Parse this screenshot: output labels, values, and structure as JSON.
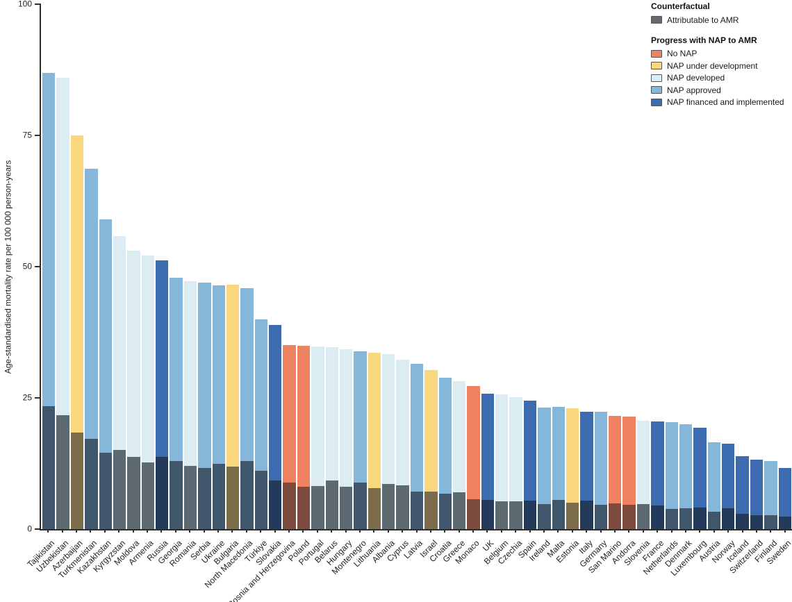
{
  "legend": {
    "counterfactual_title": "Counterfactual",
    "counterfactual_items": [
      {
        "key": "attributable",
        "label": "Attributable to AMR"
      }
    ],
    "nap_title": "Progress with NAP to AMR",
    "nap_items": [
      {
        "key": "no_nap",
        "label": "No NAP"
      },
      {
        "key": "under_development",
        "label": "NAP under development"
      },
      {
        "key": "developed",
        "label": "NAP developed"
      },
      {
        "key": "approved",
        "label": "NAP approved"
      },
      {
        "key": "financed",
        "label": "NAP financed and implemented"
      }
    ]
  },
  "chart_data": {
    "type": "bar",
    "title": "",
    "xlabel": "",
    "ylabel": "Age-standardised mortality rate per 100 000 person-years",
    "ylim": [
      0,
      100
    ],
    "yticks": [
      0,
      25,
      50,
      75,
      100
    ],
    "grid": false,
    "legend_position": "top-right",
    "semantics": "Each bar shows total (counterfactual) age-standardised mortality rate coloured by NAP progress status; the dark bottom segment is the portion attributable to AMR.",
    "colors": {
      "no_nap": "#EF8261",
      "under_development": "#F9D77E",
      "developed": "#DBECF2",
      "approved": "#85B7DA",
      "financed": "#3D6BB0",
      "attributable_legend": "#63696F",
      "attributable_overlay": {
        "no_nap": "#7C4B3E",
        "under_development": "#7D6C4A",
        "developed": "#5E6A72",
        "approved": "#40566A",
        "financed": "#233A5B"
      }
    },
    "bars": [
      {
        "country": "Tajikistan",
        "nap_status": "approved",
        "counterfactual": 86.9,
        "attributable": 23.4
      },
      {
        "country": "Uzbekistan",
        "nap_status": "developed",
        "counterfactual": 86.0,
        "attributable": 21.7
      },
      {
        "country": "Azerbaijan",
        "nap_status": "under_development",
        "counterfactual": 75.0,
        "attributable": 18.4
      },
      {
        "country": "Turkmenistan",
        "nap_status": "approved",
        "counterfactual": 68.6,
        "attributable": 17.2
      },
      {
        "country": "Kazakhstan",
        "nap_status": "approved",
        "counterfactual": 59.0,
        "attributable": 14.6
      },
      {
        "country": "Kyrgyzstan",
        "nap_status": "developed",
        "counterfactual": 55.8,
        "attributable": 15.1
      },
      {
        "country": "Moldova",
        "nap_status": "developed",
        "counterfactual": 53.0,
        "attributable": 13.8
      },
      {
        "country": "Armenia",
        "nap_status": "developed",
        "counterfactual": 52.1,
        "attributable": 12.7
      },
      {
        "country": "Russia",
        "nap_status": "financed",
        "counterfactual": 51.2,
        "attributable": 13.8
      },
      {
        "country": "Georgia",
        "nap_status": "approved",
        "counterfactual": 47.9,
        "attributable": 12.9
      },
      {
        "country": "Romania",
        "nap_status": "developed",
        "counterfactual": 47.2,
        "attributable": 12.1
      },
      {
        "country": "Serbia",
        "nap_status": "approved",
        "counterfactual": 47.0,
        "attributable": 11.7
      },
      {
        "country": "Ukraine",
        "nap_status": "approved",
        "counterfactual": 46.4,
        "attributable": 12.5
      },
      {
        "country": "Bulgaria",
        "nap_status": "under_development",
        "counterfactual": 46.6,
        "attributable": 11.9
      },
      {
        "country": "North Macedonia",
        "nap_status": "approved",
        "counterfactual": 45.9,
        "attributable": 12.9
      },
      {
        "country": "Türkiye",
        "nap_status": "approved",
        "counterfactual": 39.9,
        "attributable": 11.1
      },
      {
        "country": "Slovakia",
        "nap_status": "financed",
        "counterfactual": 38.9,
        "attributable": 9.2
      },
      {
        "country": "Bosnia and Herzegovina",
        "nap_status": "no_nap",
        "counterfactual": 35.0,
        "attributable": 8.9
      },
      {
        "country": "Poland",
        "nap_status": "no_nap",
        "counterfactual": 34.9,
        "attributable": 8.1
      },
      {
        "country": "Portugal",
        "nap_status": "developed",
        "counterfactual": 34.8,
        "attributable": 8.2
      },
      {
        "country": "Belarus",
        "nap_status": "developed",
        "counterfactual": 34.6,
        "attributable": 9.2
      },
      {
        "country": "Hungary",
        "nap_status": "developed",
        "counterfactual": 34.3,
        "attributable": 8.1
      },
      {
        "country": "Montenegro",
        "nap_status": "approved",
        "counterfactual": 33.8,
        "attributable": 8.9
      },
      {
        "country": "Lithuania",
        "nap_status": "under_development",
        "counterfactual": 33.6,
        "attributable": 7.8
      },
      {
        "country": "Albania",
        "nap_status": "developed",
        "counterfactual": 33.3,
        "attributable": 8.6
      },
      {
        "country": "Cyprus",
        "nap_status": "developed",
        "counterfactual": 32.3,
        "attributable": 8.3
      },
      {
        "country": "Latvia",
        "nap_status": "approved",
        "counterfactual": 31.5,
        "attributable": 7.2
      },
      {
        "country": "Israel",
        "nap_status": "under_development",
        "counterfactual": 30.3,
        "attributable": 7.1
      },
      {
        "country": "Croatia",
        "nap_status": "approved",
        "counterfactual": 28.8,
        "attributable": 6.8
      },
      {
        "country": "Greece",
        "nap_status": "developed",
        "counterfactual": 28.2,
        "attributable": 7.0
      },
      {
        "country": "Monaco",
        "nap_status": "no_nap",
        "counterfactual": 27.2,
        "attributable": 5.7
      },
      {
        "country": "UK",
        "nap_status": "financed",
        "counterfactual": 25.8,
        "attributable": 5.5
      },
      {
        "country": "Belgium",
        "nap_status": "developed",
        "counterfactual": 25.6,
        "attributable": 5.3
      },
      {
        "country": "Czechia",
        "nap_status": "developed",
        "counterfactual": 25.2,
        "attributable": 5.3
      },
      {
        "country": "Spain",
        "nap_status": "financed",
        "counterfactual": 24.5,
        "attributable": 5.4
      },
      {
        "country": "Ireland",
        "nap_status": "approved",
        "counterfactual": 23.2,
        "attributable": 4.8
      },
      {
        "country": "Malta",
        "nap_status": "approved",
        "counterfactual": 23.3,
        "attributable": 5.6
      },
      {
        "country": "Estonia",
        "nap_status": "under_development",
        "counterfactual": 23.0,
        "attributable": 5.0
      },
      {
        "country": "Italy",
        "nap_status": "financed",
        "counterfactual": 22.4,
        "attributable": 5.4
      },
      {
        "country": "Germany",
        "nap_status": "approved",
        "counterfactual": 22.3,
        "attributable": 4.6
      },
      {
        "country": "San Marino",
        "nap_status": "no_nap",
        "counterfactual": 21.5,
        "attributable": 4.9
      },
      {
        "country": "Andorra",
        "nap_status": "no_nap",
        "counterfactual": 21.4,
        "attributable": 4.6
      },
      {
        "country": "Slovenia",
        "nap_status": "developed",
        "counterfactual": 20.7,
        "attributable": 4.7
      },
      {
        "country": "France",
        "nap_status": "financed",
        "counterfactual": 20.5,
        "attributable": 4.5
      },
      {
        "country": "Netherlands",
        "nap_status": "approved",
        "counterfactual": 20.4,
        "attributable": 3.9
      },
      {
        "country": "Denmark",
        "nap_status": "approved",
        "counterfactual": 20.0,
        "attributable": 4.0
      },
      {
        "country": "Luxembourg",
        "nap_status": "financed",
        "counterfactual": 19.3,
        "attributable": 4.1
      },
      {
        "country": "Austria",
        "nap_status": "approved",
        "counterfactual": 16.6,
        "attributable": 3.3
      },
      {
        "country": "Norway",
        "nap_status": "financed",
        "counterfactual": 16.3,
        "attributable": 4.0
      },
      {
        "country": "Iceland",
        "nap_status": "financed",
        "counterfactual": 13.9,
        "attributable": 2.9
      },
      {
        "country": "Switzerland",
        "nap_status": "financed",
        "counterfactual": 13.2,
        "attributable": 2.7
      },
      {
        "country": "Finland",
        "nap_status": "approved",
        "counterfactual": 13.0,
        "attributable": 2.7
      },
      {
        "country": "Sweden",
        "nap_status": "financed",
        "counterfactual": 11.7,
        "attributable": 2.4
      }
    ]
  }
}
